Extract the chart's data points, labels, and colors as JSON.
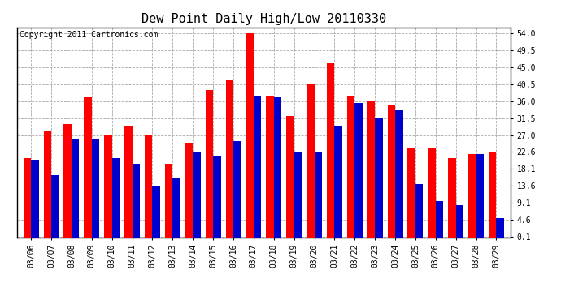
{
  "title": "Dew Point Daily High/Low 20110330",
  "copyright": "Copyright 2011 Cartronics.com",
  "dates": [
    "03/06",
    "03/07",
    "03/08",
    "03/09",
    "03/10",
    "03/11",
    "03/12",
    "03/13",
    "03/14",
    "03/15",
    "03/16",
    "03/17",
    "03/18",
    "03/19",
    "03/20",
    "03/21",
    "03/22",
    "03/23",
    "03/24",
    "03/25",
    "03/26",
    "03/27",
    "03/28",
    "03/29"
  ],
  "highs": [
    21.0,
    28.0,
    30.0,
    37.0,
    27.0,
    29.5,
    27.0,
    19.5,
    25.0,
    39.0,
    41.5,
    54.0,
    37.5,
    32.0,
    40.5,
    46.0,
    37.5,
    36.0,
    35.0,
    23.5,
    23.5,
    21.0,
    22.0,
    22.5
  ],
  "lows": [
    20.5,
    16.5,
    26.0,
    26.0,
    21.0,
    19.5,
    13.5,
    15.5,
    22.5,
    21.5,
    25.5,
    37.5,
    37.0,
    22.5,
    22.5,
    29.5,
    35.5,
    31.5,
    33.5,
    14.0,
    9.5,
    8.5,
    22.0,
    5.0
  ],
  "high_color": "#ff0000",
  "low_color": "#0000cc",
  "bg_color": "#ffffff",
  "grid_color": "#aaaaaa",
  "yticks": [
    0.1,
    4.6,
    9.1,
    13.6,
    18.1,
    22.6,
    27.0,
    31.5,
    36.0,
    40.5,
    45.0,
    49.5,
    54.0
  ],
  "ylim_max": 55.5,
  "bar_width": 0.38,
  "title_fontsize": 11,
  "tick_fontsize": 7,
  "copyright_fontsize": 7
}
